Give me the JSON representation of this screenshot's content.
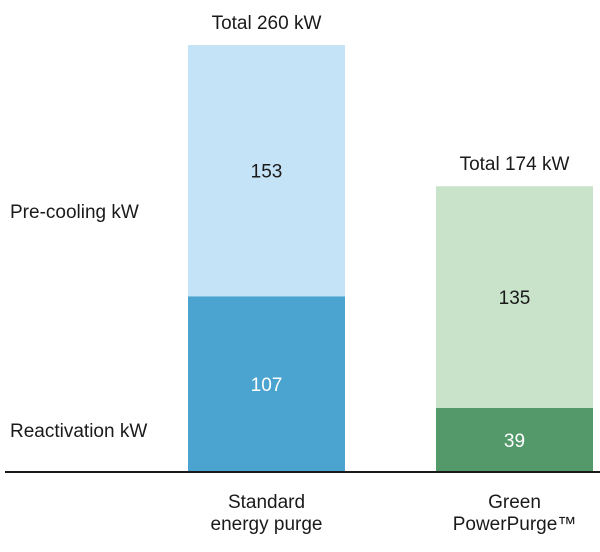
{
  "chart_data": {
    "type": "bar",
    "stacked": true,
    "categories": [
      "Standard energy purge",
      "Green PowerPurge™"
    ],
    "category_lines": [
      [
        "Standard",
        "energy purge"
      ],
      [
        "Green",
        "PowerPurge™"
      ]
    ],
    "totals_text": [
      "Total 260 kW",
      "Total 174 kW"
    ],
    "totals": [
      260,
      174
    ],
    "series_labels": [
      "Reactivation kW",
      "Pre-cooling kW"
    ],
    "bars": [
      {
        "category": "Standard energy purge",
        "segments": [
          {
            "series": "Reactivation kW",
            "value": 107,
            "label": "107",
            "color": "#4ba3cf",
            "label_color": "#ffffff"
          },
          {
            "series": "Pre-cooling kW",
            "value": 153,
            "label": "153",
            "color": "#c5e3f7",
            "label_color": "#1a1a1a"
          }
        ]
      },
      {
        "category": "Green PowerPurge™",
        "segments": [
          {
            "series": "Reactivation kW",
            "value": 39,
            "label": "39",
            "color": "#54996a",
            "label_color": "#ffffff"
          },
          {
            "series": "Pre-cooling kW",
            "value": 135,
            "label": "135",
            "color": "#c8e3ca",
            "label_color": "#1a1a1a"
          }
        ]
      }
    ],
    "ylim": [
      0,
      260
    ],
    "grid": false,
    "axis_color": "#1a1a1a"
  }
}
